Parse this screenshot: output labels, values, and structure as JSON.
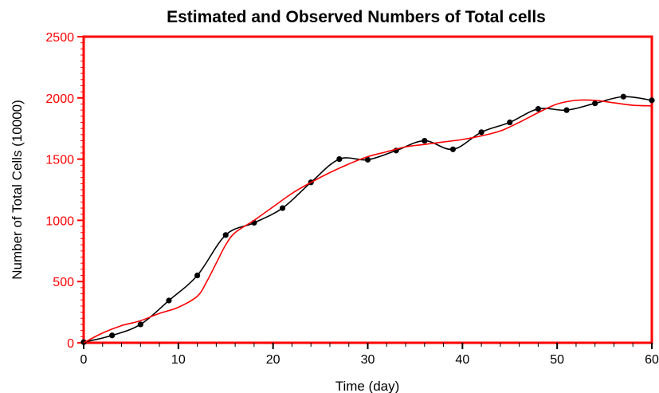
{
  "chart_data": {
    "type": "line",
    "title": "Estimated and Observed Numbers of Total cells",
    "xlabel": "Time (day)",
    "ylabel": "Number of Total Cells (10000)",
    "xlim": [
      0,
      60
    ],
    "ylim": [
      0,
      2500
    ],
    "xticks": [
      0,
      10,
      20,
      30,
      40,
      50,
      60
    ],
    "yticks": [
      0,
      500,
      1000,
      1500,
      2000,
      2500
    ],
    "frame_color": "#ff0000",
    "y_tick_color": "#ff0000",
    "x_tick_color": "#000000",
    "grid": false,
    "series": [
      {
        "style": "line+markers",
        "color": "#000000",
        "x": [
          0,
          3,
          6,
          9,
          12,
          15,
          18,
          21,
          24,
          27,
          30,
          33,
          36,
          39,
          42,
          45,
          48,
          51,
          54,
          57,
          60
        ],
        "values": [
          5,
          60,
          150,
          345,
          550,
          880,
          980,
          1100,
          1310,
          1500,
          1495,
          1570,
          1650,
          1580,
          1720,
          1800,
          1910,
          1900,
          1955,
          2010,
          1980
        ]
      },
      {
        "style": "line",
        "color": "#ff0000",
        "x": [
          0,
          2,
          4,
          6,
          8,
          10,
          12,
          13,
          14,
          15,
          16,
          18,
          20,
          22,
          24,
          26,
          28,
          30,
          32,
          34,
          36,
          38,
          40,
          42,
          44,
          46,
          48,
          50,
          52,
          54,
          56,
          58,
          60
        ],
        "values": [
          0,
          80,
          140,
          180,
          240,
          290,
          380,
          500,
          650,
          800,
          900,
          1000,
          1110,
          1220,
          1310,
          1390,
          1460,
          1520,
          1560,
          1600,
          1620,
          1640,
          1660,
          1690,
          1730,
          1800,
          1880,
          1950,
          1980,
          1980,
          1960,
          1940,
          1935
        ]
      }
    ]
  }
}
